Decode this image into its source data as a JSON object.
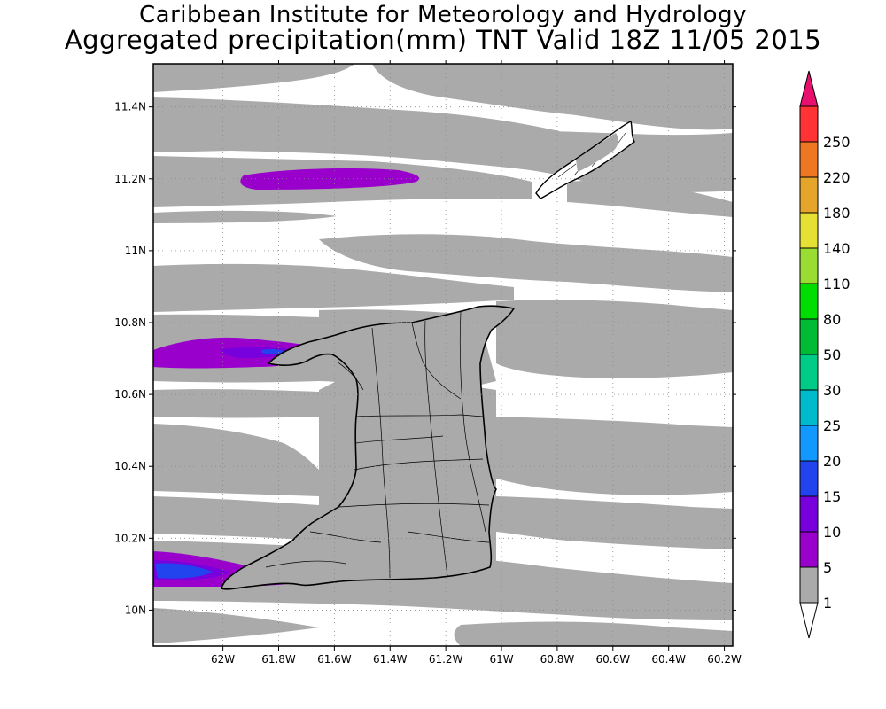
{
  "header": {
    "title_line1": "Caribbean Institute for Meteorology and Hydrology",
    "title_line2": "Aggregated precipitation(mm) TNT Valid 18Z 11/05 2015"
  },
  "map": {
    "lon_range": [
      -62.25,
      -60.17
    ],
    "lat_range": [
      9.9,
      11.52
    ],
    "x_ticks": [
      {
        "value": -62.0,
        "label": "62W"
      },
      {
        "value": -61.8,
        "label": "61.8W"
      },
      {
        "value": -61.6,
        "label": "61.6W"
      },
      {
        "value": -61.4,
        "label": "61.4W"
      },
      {
        "value": -61.2,
        "label": "61.2W"
      },
      {
        "value": -61.0,
        "label": "61W"
      },
      {
        "value": -60.8,
        "label": "60.8W"
      },
      {
        "value": -60.6,
        "label": "60.6W"
      },
      {
        "value": -60.4,
        "label": "60.4W"
      },
      {
        "value": -60.2,
        "label": "60.2W"
      }
    ],
    "y_ticks": [
      {
        "value": 10.0,
        "label": "10N"
      },
      {
        "value": 10.2,
        "label": "10.2N"
      },
      {
        "value": 10.4,
        "label": "10.4N"
      },
      {
        "value": 10.6,
        "label": "10.6N"
      },
      {
        "value": 10.8,
        "label": "10.8N"
      },
      {
        "value": 11.0,
        "label": "11N"
      },
      {
        "value": 11.2,
        "label": "11.2N"
      },
      {
        "value": 11.4,
        "label": "11.4N"
      }
    ],
    "grid": true
  },
  "legend": {
    "colors": [
      "#ffffff",
      "#aaaaaa",
      "#9900cc",
      "#7700dd",
      "#2244ee",
      "#1199ff",
      "#00bbcc",
      "#00cc88",
      "#00bb33",
      "#00dd00",
      "#99dd33",
      "#e5e033",
      "#e5a52a",
      "#ee7722",
      "#ff3333",
      "#e8106e"
    ],
    "labels": [
      "1",
      "5",
      "10",
      "15",
      "20",
      "25",
      "30",
      "50",
      "80",
      "110",
      "140",
      "180",
      "220",
      "250"
    ]
  },
  "colors": {
    "rain_1_5": "#aaaaaa",
    "rain_5_10": "#9900cc",
    "rain_10_15": "#7700dd",
    "rain_15_20": "#2244ee"
  }
}
